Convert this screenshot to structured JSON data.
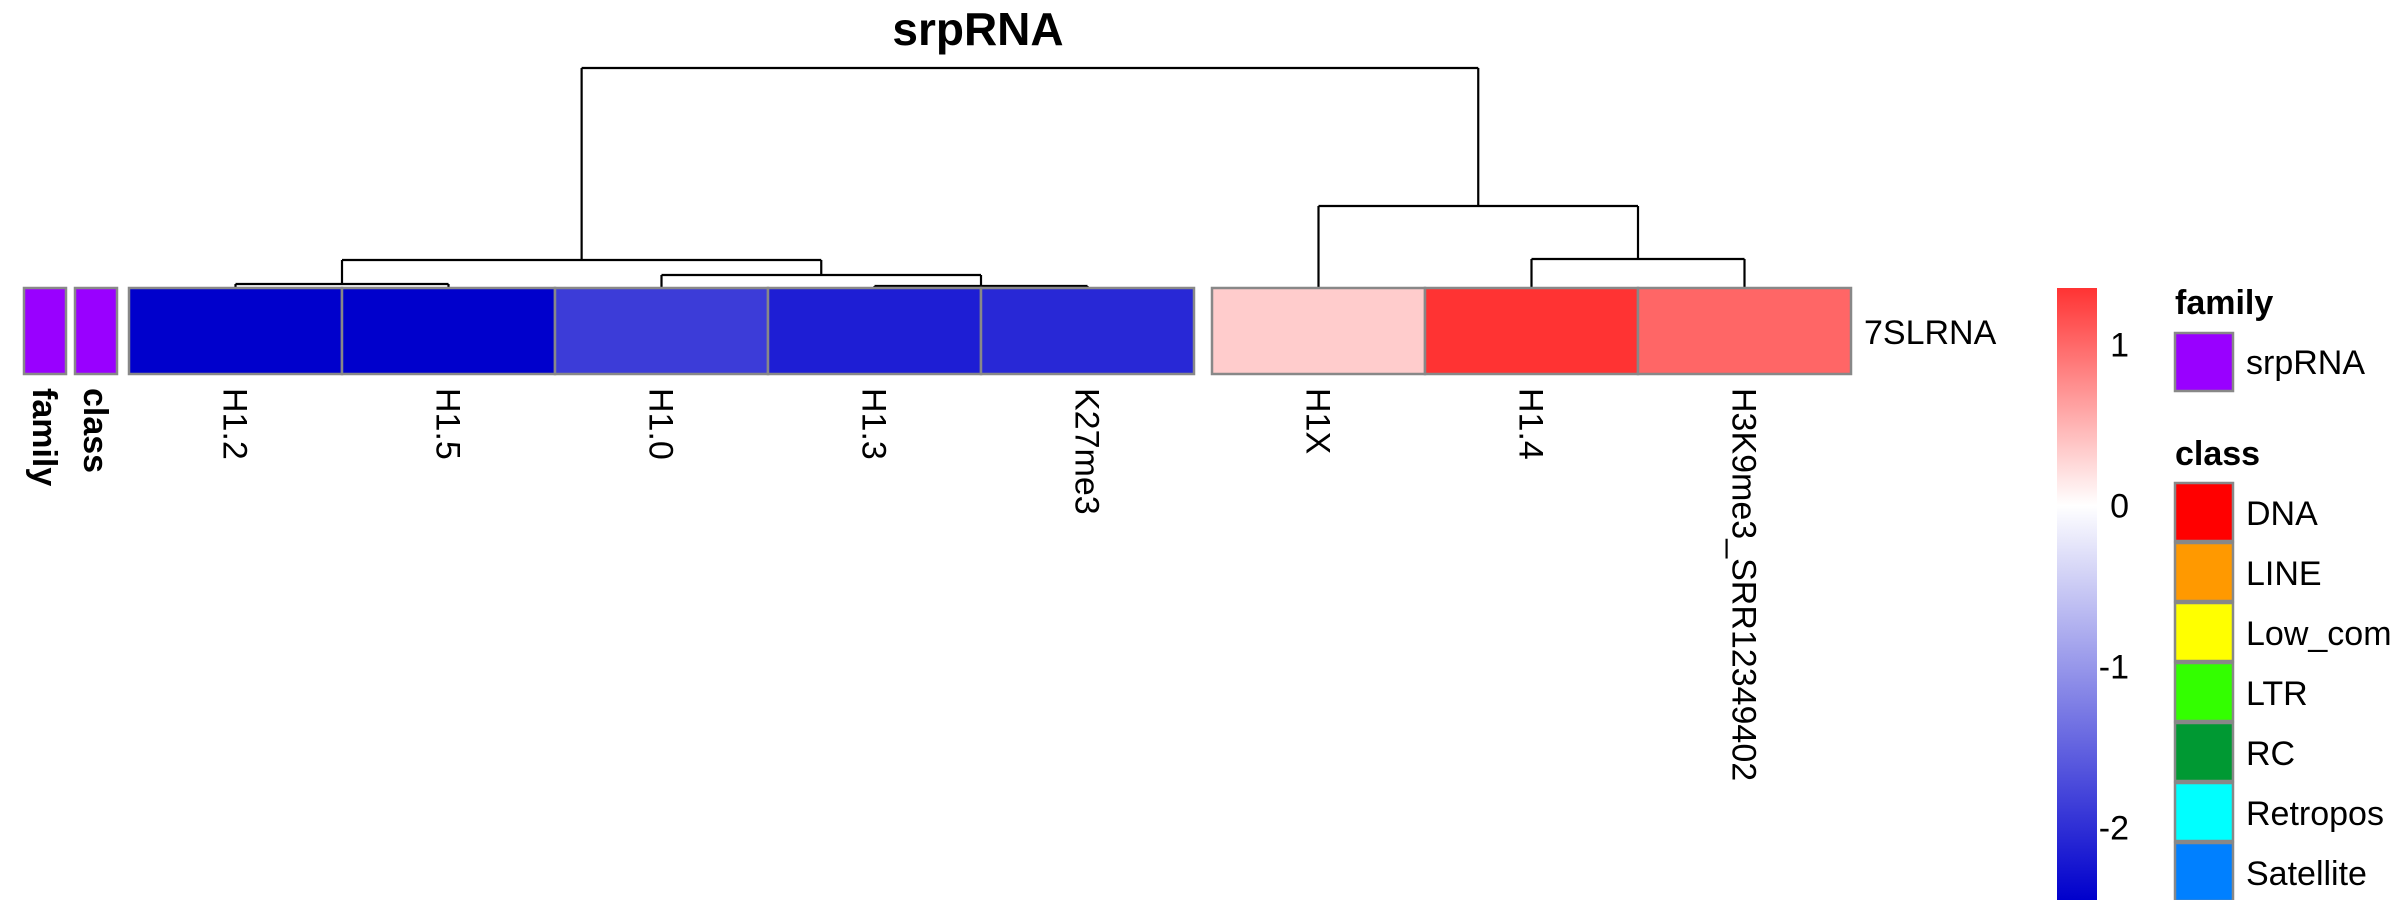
{
  "chart_data": {
    "type": "heatmap",
    "title": "srpRNA",
    "row_labels": [
      "7SLRNA"
    ],
    "columns": [
      {
        "label": "H1.2",
        "value": -2.4,
        "color": "#0000cc"
      },
      {
        "label": "H1.5",
        "value": -2.4,
        "color": "#0000cc"
      },
      {
        "label": "H1.0",
        "value": -1.95,
        "color": "#3c3cd8"
      },
      {
        "label": "H1.3",
        "value": -2.15,
        "color": "#1e1ed4"
      },
      {
        "label": "K27me3",
        "value": -2.1,
        "color": "#2828d6"
      },
      {
        "label": "H1X",
        "value": 0.25,
        "color": "#ffcccc"
      },
      {
        "label": "H1.4",
        "value": 1.1,
        "color": "#ff3333"
      },
      {
        "label": "H3K9me3_SRR12349402",
        "value": 0.85,
        "color": "#ff6666"
      }
    ],
    "column_split_after_index": 4,
    "annotation_tracks": [
      {
        "label": "family",
        "color": "#9900ff"
      },
      {
        "label": "class",
        "color": "#9900ff"
      }
    ],
    "color_scale": {
      "ticks": [
        "1",
        "0",
        "-1",
        "-2"
      ],
      "tick_values": [
        1,
        0,
        -1,
        -2
      ],
      "range": [
        -2.45,
        1.35
      ],
      "low_color": "#0000cc",
      "mid_color": "#ffffff",
      "high_color": "#ff3333"
    },
    "legends": {
      "family": {
        "title": "family",
        "items": [
          {
            "label": "srpRNA",
            "color": "#9900ff"
          }
        ]
      },
      "class": {
        "title": "class",
        "items": [
          {
            "label": "DNA",
            "color": "#ff0000"
          },
          {
            "label": "LINE",
            "color": "#ff9900"
          },
          {
            "label": "Low_com",
            "color": "#ffff00"
          },
          {
            "label": "LTR",
            "color": "#33ff00"
          },
          {
            "label": "RC",
            "color": "#009933"
          },
          {
            "label": "Retropos",
            "color": "#00ffff"
          },
          {
            "label": "Satellite",
            "color": "#0080ff"
          }
        ]
      }
    }
  }
}
